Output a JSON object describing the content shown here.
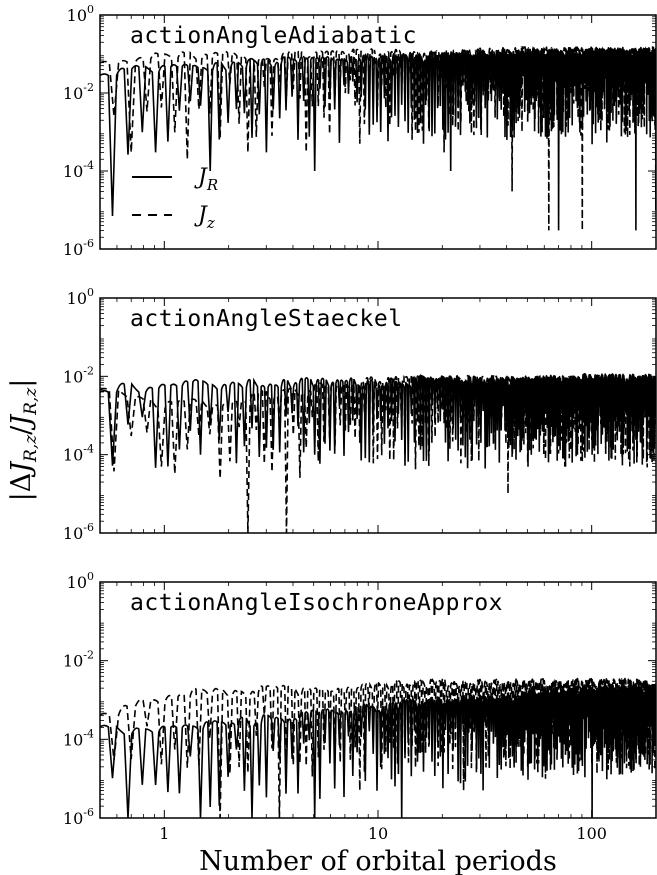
{
  "chart_data": {
    "type": "line",
    "xlabel": "Number of orbital periods",
    "ylabel": "|ΔJ_{R,z}/J_{R,z}|",
    "xscale": "log",
    "yscale": "log",
    "xlim": [
      0.5,
      200
    ],
    "ylim": [
      1e-06,
      1
    ],
    "x_ticks": [
      {
        "value": 1,
        "label": "1"
      },
      {
        "value": 10,
        "label": "10"
      },
      {
        "value": 100,
        "label": "100"
      }
    ],
    "y_ticks": [
      {
        "value": 1,
        "base": "10",
        "exp": "0"
      },
      {
        "value": 0.01,
        "base": "10",
        "exp": "-2"
      },
      {
        "value": 0.0001,
        "base": "10",
        "exp": "-4"
      },
      {
        "value": 1e-06,
        "base": "10",
        "exp": "-6"
      }
    ],
    "legend": {
      "placement": "left",
      "entries": [
        {
          "series": "J_R",
          "main": "J",
          "sub": "R",
          "style": "solid"
        },
        {
          "series": "J_z",
          "main": "J",
          "sub": "z",
          "style": "dashed"
        }
      ]
    },
    "panels": [
      {
        "title": "actionAngleAdiabatic",
        "series": [
          {
            "name": "J_R",
            "style": "solid",
            "x": [
              0.5,
              0.55,
              0.6,
              0.7,
              0.9,
              1.2,
              1.5,
              2,
              3,
              5,
              10,
              20,
              40,
              70,
              100,
              200
            ],
            "envelope": [
              0.04,
              0.03,
              0.04,
              0.05,
              0.05,
              0.05,
              0.05,
              0.06,
              0.07,
              0.08,
              0.09,
              0.1,
              0.12,
              0.12,
              0.12,
              0.13
            ],
            "dips": [
              [
                0.57,
                7e-06
              ],
              [
                0.9,
                0.0003
              ],
              [
                1.6,
                0.0001
              ],
              [
                3,
                0.0003
              ],
              [
                5,
                0.0001
              ],
              [
                10,
                0.001
              ],
              [
                22,
                0.0001
              ],
              [
                70,
                3e-06
              ],
              [
                160,
                3e-06
              ]
            ]
          },
          {
            "name": "J_z",
            "style": "dashed",
            "x": [
              0.5,
              0.6,
              0.7,
              0.9,
              1.2,
              1.5,
              2,
              3,
              5,
              10,
              20,
              40,
              70,
              100,
              200
            ],
            "envelope": [
              0.07,
              0.08,
              0.1,
              0.1,
              0.1,
              0.09,
              0.1,
              0.1,
              0.11,
              0.12,
              0.12,
              0.13,
              0.13,
              0.13,
              0.14
            ],
            "dips": [
              [
                0.65,
                0.0003
              ],
              [
                1.3,
                0.0002
              ],
              [
                2.5,
                0.0003
              ],
              [
                4.6,
                0.0003
              ],
              [
                8,
                0.0005
              ],
              [
                20,
                0.0003
              ],
              [
                42,
                3e-05
              ],
              [
                63,
                3e-06
              ],
              [
                90,
                3e-06
              ],
              [
                200,
                1e-05
              ]
            ]
          }
        ]
      },
      {
        "title": "actionAngleStaeckel",
        "series": [
          {
            "name": "J_R",
            "style": "solid",
            "x": [
              0.5,
              0.7,
              1,
              2,
              5,
              10,
              20,
              50,
              100,
              200
            ],
            "envelope": [
              0.006,
              0.006,
              0.007,
              0.007,
              0.008,
              0.008,
              0.009,
              0.009,
              0.01,
              0.01
            ],
            "dips": [
              [
                0.57,
                0.0001
              ],
              [
                0.95,
                5e-05
              ],
              [
                1.5,
                0.0001
              ],
              [
                5,
                0.0001
              ],
              [
                30,
                0.0002
              ],
              [
                100,
                0.0001
              ]
            ]
          },
          {
            "name": "J_z",
            "style": "dashed",
            "x": [
              0.5,
              0.7,
              1,
              2,
              5,
              10,
              20,
              50,
              100,
              200
            ],
            "envelope": [
              0.005,
              0.003,
              0.002,
              0.003,
              0.006,
              0.009,
              0.009,
              0.009,
              0.009,
              0.009
            ],
            "dips": [
              [
                0.65,
                0.0003
              ],
              [
                2.5,
                1e-06
              ],
              [
                3.7,
                1e-06
              ],
              [
                8,
                0.0002
              ],
              [
                40,
                1e-05
              ],
              [
                75,
                5e-05
              ],
              [
                150,
                5e-05
              ]
            ]
          }
        ]
      },
      {
        "title": "actionAngleIsochroneApprox",
        "series": [
          {
            "name": "J_R",
            "style": "solid",
            "x": [
              0.5,
              0.7,
              1,
              2,
              5,
              10,
              20,
              50,
              100,
              200
            ],
            "envelope": [
              0.0002,
              0.0002,
              0.0002,
              0.0003,
              0.0005,
              0.0008,
              0.001,
              0.0015,
              0.0018,
              0.002
            ],
            "dips": [
              [
                0.8,
                7e-06
              ],
              [
                1.5,
                1e-06
              ],
              [
                2.6,
                1e-06
              ],
              [
                5,
                1e-06
              ],
              [
                13,
                1e-06
              ],
              [
                100,
                1e-06
              ]
            ]
          },
          {
            "name": "J_z",
            "style": "dashed",
            "x": [
              0.5,
              0.7,
              1,
              2,
              5,
              10,
              20,
              50,
              100,
              200
            ],
            "envelope": [
              0.0003,
              0.0008,
              0.0015,
              0.002,
              0.002,
              0.003,
              0.003,
              0.003,
              0.003,
              0.003
            ],
            "dips": [
              [
                0.55,
                3e-05
              ],
              [
                1.7,
                1e-06
              ],
              [
                3.5,
                1e-06
              ],
              [
                8,
                5e-06
              ],
              [
                25,
                5e-06
              ],
              [
                60,
                1e-05
              ]
            ]
          }
        ]
      }
    ]
  }
}
